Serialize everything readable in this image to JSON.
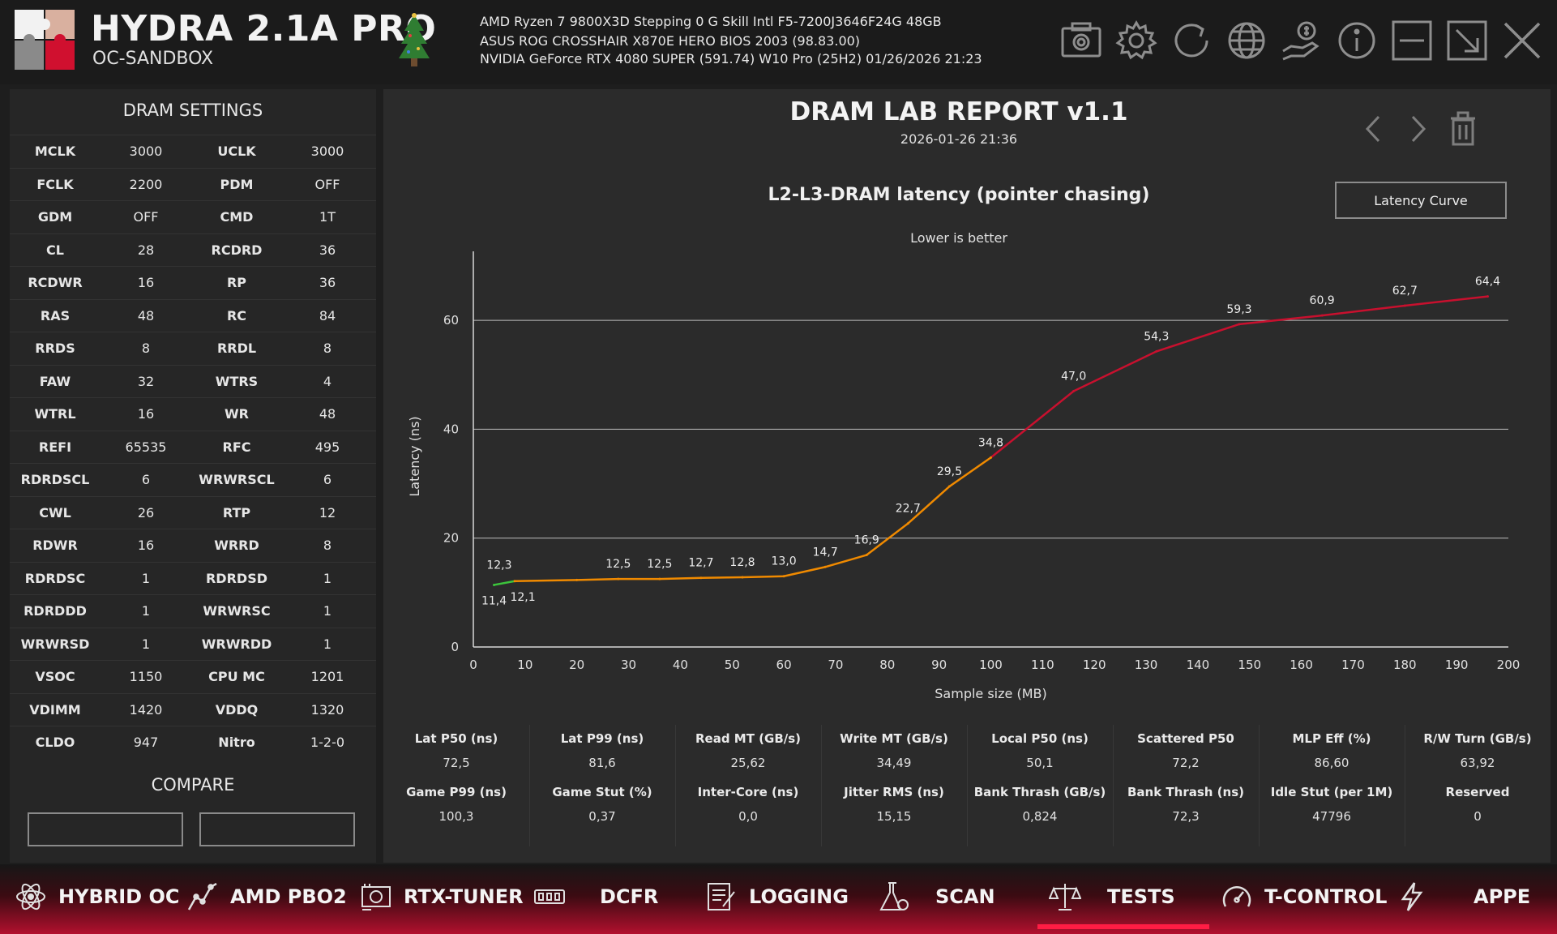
{
  "header": {
    "title": "HYDRA 2.1A PRO",
    "subtitle": "OC-SANDBOX",
    "system_lines": [
      "AMD Ryzen 7 9800X3D Stepping 0    G Skill Intl F5-7200J3646F24G 48GB",
      "ASUS ROG CROSSHAIR X870E HERO    BIOS 2003 (98.83.00)",
      "NVIDIA GeForce RTX 4080 SUPER (591.74)    W10 Pro (25H2)    01/26/2026 21:23"
    ],
    "icons": [
      "camera-icon",
      "gear-icon",
      "refresh-icon",
      "globe-icon",
      "donate-icon",
      "info-icon",
      "minimize-icon",
      "restore-icon",
      "close-icon"
    ]
  },
  "dram": {
    "heading": "DRAM SETTINGS",
    "rows": [
      [
        "MCLK",
        "3000",
        "UCLK",
        "3000"
      ],
      [
        "FCLK",
        "2200",
        "PDM",
        "OFF"
      ],
      [
        "GDM",
        "OFF",
        "CMD",
        "1T"
      ],
      [
        "CL",
        "28",
        "RCDRD",
        "36"
      ],
      [
        "RCDWR",
        "16",
        "RP",
        "36"
      ],
      [
        "RAS",
        "48",
        "RC",
        "84"
      ],
      [
        "RRDS",
        "8",
        "RRDL",
        "8"
      ],
      [
        "FAW",
        "32",
        "WTRS",
        "4"
      ],
      [
        "WTRL",
        "16",
        "WR",
        "48"
      ],
      [
        "REFI",
        "65535",
        "RFC",
        "495"
      ],
      [
        "RDRDSCL",
        "6",
        "WRWRSCL",
        "6"
      ],
      [
        "CWL",
        "26",
        "RTP",
        "12"
      ],
      [
        "RDWR",
        "16",
        "WRRD",
        "8"
      ],
      [
        "RDRDSC",
        "1",
        "RDRDSD",
        "1"
      ],
      [
        "RDRDDD",
        "1",
        "WRWRSC",
        "1"
      ],
      [
        "WRWRSD",
        "1",
        "WRWRDD",
        "1"
      ],
      [
        "VSOC",
        "1150",
        "CPU MC",
        "1201"
      ],
      [
        "VDIMM",
        "1420",
        "VDDQ",
        "1320"
      ],
      [
        "CLDO",
        "947",
        "Nitro",
        "1-2-0"
      ]
    ],
    "compare_heading": "COMPARE"
  },
  "report": {
    "title": "DRAM LAB REPORT v1.1",
    "date": "2026-01-26 21:36",
    "curve_button": "Latency Curve"
  },
  "chart_data": {
    "type": "line",
    "title": "L2-L3-DRAM latency (pointer chasing)",
    "subtitle": "Lower is better",
    "xlabel": "Sample size (MB)",
    "ylabel": "Latency (ns)",
    "xlim": [
      0,
      200
    ],
    "ylim": [
      0,
      70
    ],
    "x_ticks": [
      "0",
      "10",
      "20",
      "30",
      "40",
      "50",
      "60",
      "70",
      "80",
      "90",
      "100",
      "110",
      "120",
      "130",
      "140",
      "150",
      "160",
      "170",
      "180",
      "190",
      "200"
    ],
    "y_ticks": [
      "0",
      "20",
      "40",
      "60"
    ],
    "grid": "horizontal",
    "x": [
      4,
      8,
      20,
      28,
      36,
      44,
      52,
      60,
      68,
      76,
      84,
      92,
      100,
      116,
      132,
      148,
      164,
      180,
      196
    ],
    "values": [
      11.4,
      12.1,
      12.3,
      12.5,
      12.5,
      12.7,
      12.8,
      13.0,
      14.7,
      16.9,
      22.7,
      29.5,
      34.8,
      47.0,
      54.3,
      59.3,
      60.9,
      62.7,
      64.4
    ],
    "labels": [
      "11,4",
      "12,1",
      "12,3",
      "12,5",
      "12,5",
      "12,7",
      "12,8",
      "13,0",
      "14,7",
      "16,9",
      "22,7",
      "29,5",
      "34,8",
      "47,0",
      "54,3",
      "59,3",
      "60,9",
      "62,7",
      "64,4"
    ],
    "segment_colors": {
      "l2": "#3cc43c",
      "l3": "#f08a00",
      "dram": "#c8102e"
    }
  },
  "stats": [
    {
      "label": "Lat P50 (ns)",
      "value": "72,5"
    },
    {
      "label": "Lat P99 (ns)",
      "value": "81,6"
    },
    {
      "label": "Read MT (GB/s)",
      "value": "25,62"
    },
    {
      "label": "Write MT (GB/s)",
      "value": "34,49"
    },
    {
      "label": "Local P50 (ns)",
      "value": "50,1"
    },
    {
      "label": "Scattered P50",
      "value": "72,2"
    },
    {
      "label": "MLP Eff (%)",
      "value": "86,60"
    },
    {
      "label": "R/W Turn (GB/s)",
      "value": "63,92"
    },
    {
      "label": "Game P99 (ns)",
      "value": "100,3"
    },
    {
      "label": "Game Stut (%)",
      "value": "0,37"
    },
    {
      "label": "Inter-Core (ns)",
      "value": "0,0"
    },
    {
      "label": "Jitter RMS (ns)",
      "value": "15,15"
    },
    {
      "label": "Bank Thrash (GB/s)",
      "value": "0,824"
    },
    {
      "label": "Bank Thrash (ns)",
      "value": "72,3"
    },
    {
      "label": "Idle Stut (per 1M)",
      "value": "47796"
    },
    {
      "label": "Reserved",
      "value": "0"
    }
  ],
  "nav": {
    "items": [
      {
        "label": "HYBRID OC",
        "icon": "atom-icon"
      },
      {
        "label": "AMD PBO2",
        "icon": "curve-icon"
      },
      {
        "label": "RTX-TUNER",
        "icon": "gpu-icon"
      },
      {
        "label": "DCFR",
        "icon": "ram-icon"
      },
      {
        "label": "LOGGING",
        "icon": "log-icon"
      },
      {
        "label": "SCAN",
        "icon": "flask-icon"
      },
      {
        "label": "TESTS",
        "icon": "scales-icon"
      },
      {
        "label": "T-CONTROL",
        "icon": "gauge-icon"
      },
      {
        "label": "APPE",
        "icon": "bolt-icon"
      }
    ],
    "active": "TESTS"
  },
  "colors": {
    "accent": "#ff1d44",
    "panel": "#262626",
    "background": "#1e1e1e"
  }
}
